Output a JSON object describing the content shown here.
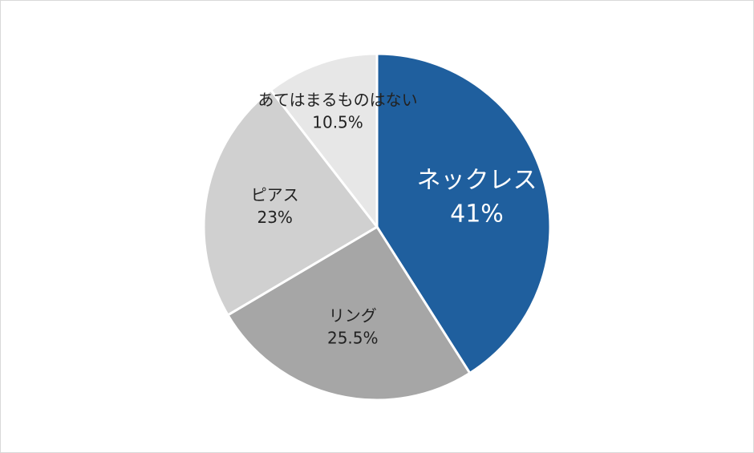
{
  "chart_data": {
    "type": "pie",
    "categories": [
      "ネックレス",
      "リング",
      "ピアス",
      "あてはまるものはない"
    ],
    "values": [
      41,
      25.5,
      23,
      10.5
    ],
    "value_labels": [
      "41%",
      "25.5%",
      "23%",
      "10.5%"
    ],
    "colors": [
      "#1f5f9e",
      "#a6a6a6",
      "#d0d0d0",
      "#e7e7e7"
    ]
  }
}
